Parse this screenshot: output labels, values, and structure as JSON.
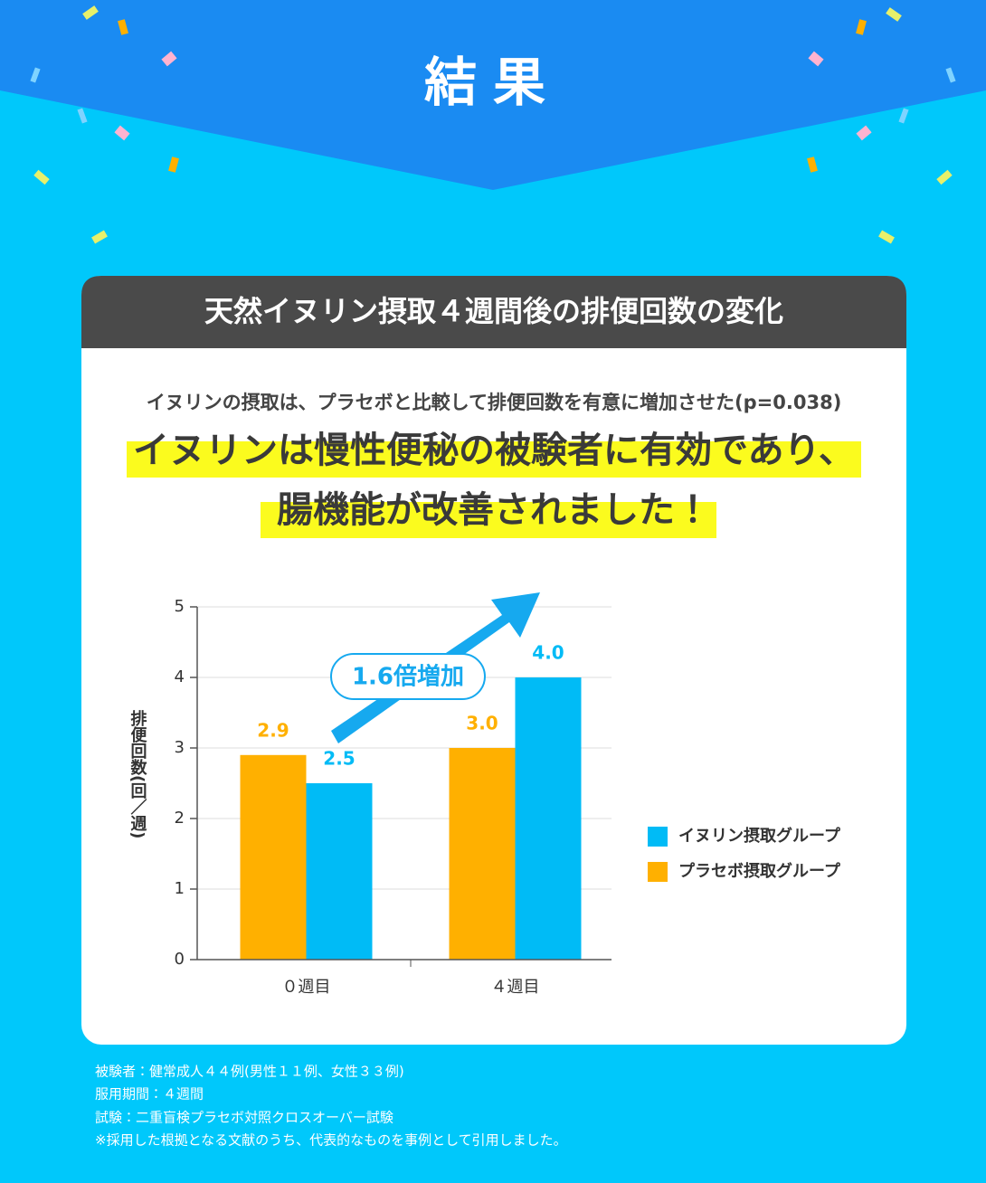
{
  "header": {
    "title": "結果"
  },
  "card": {
    "title": "天然イヌリン摂取４週間後の排便回数の変化",
    "subtitle": "イヌリンの摂取は、プラセボと比較して排便回数を有意に増加させた(p=0.038)",
    "headline": [
      "イヌリンは慢性便秘の被験者に有効であり、",
      "腸機能が改善されました！"
    ]
  },
  "chart_data": {
    "type": "bar",
    "y_label": "排便回数(回／週)",
    "categories": [
      "０週目",
      "４週目"
    ],
    "series": [
      {
        "name": "プラセボ摂取グループ",
        "color": "#ffb000",
        "values": [
          2.9,
          3
        ],
        "value_labels": [
          "2.9",
          "3.0"
        ]
      },
      {
        "name": "イヌリン摂取グループ",
        "color": "#00bbf6",
        "values": [
          2.5,
          4
        ],
        "value_labels": [
          "2.5",
          "4.0"
        ]
      }
    ],
    "ylim": [
      0,
      5
    ],
    "yticks": [
      0,
      1,
      2,
      3,
      4,
      5
    ],
    "grid": true,
    "annotation": "1.6倍増加"
  },
  "notes": [
    "被験者：健常成人４４例(男性１１例、女性３３例)",
    "服用期間：４週間",
    "試験：二重盲検プラセボ対照クロスオーバー試験",
    "※採用した根拠となる文献のうち、代表的なものを事例として引用しました。"
  ]
}
